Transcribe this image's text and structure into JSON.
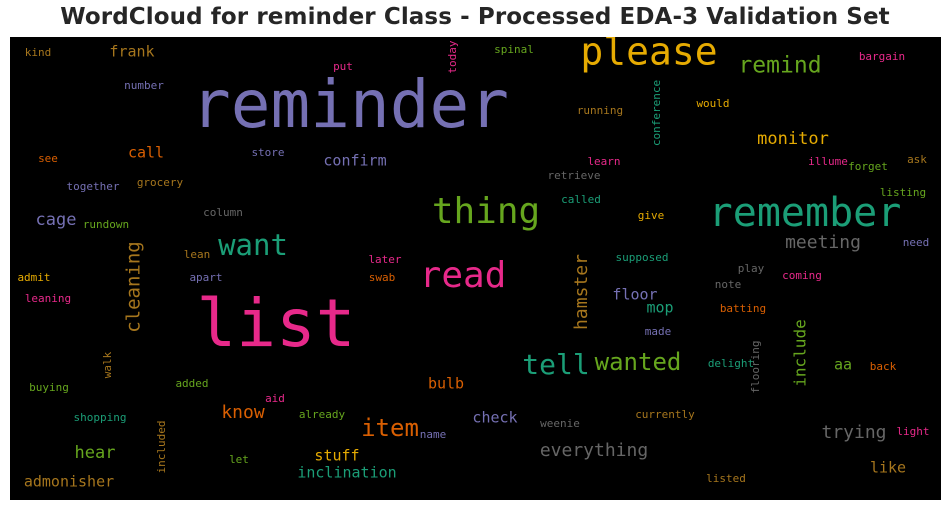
{
  "chart_data": {
    "type": "wordcloud",
    "title": "WordCloud for reminder Class - Processed EDA-3 Validation Set",
    "background": "#000000",
    "colors": [
      "#7570b3",
      "#e7298a",
      "#e6ab02",
      "#1b9e77",
      "#66a61e",
      "#d95f02",
      "#a6761d",
      "#666666"
    ],
    "words": [
      {
        "text": "reminder",
        "size": 66,
        "color": "#7570b3",
        "rotate": false
      },
      {
        "text": "list",
        "size": 66,
        "color": "#e7298a",
        "rotate": false
      },
      {
        "text": "please",
        "size": 38,
        "color": "#e6ab02",
        "rotate": false
      },
      {
        "text": "remember",
        "size": 40,
        "color": "#1b9e77",
        "rotate": false
      },
      {
        "text": "thing",
        "size": 36,
        "color": "#66a61e",
        "rotate": false
      },
      {
        "text": "read",
        "size": 36,
        "color": "#e7298a",
        "rotate": false
      },
      {
        "text": "want",
        "size": 29,
        "color": "#1b9e77",
        "rotate": false
      },
      {
        "text": "tell",
        "size": 28,
        "color": "#1b9e77",
        "rotate": false
      },
      {
        "text": "wanted",
        "size": 24,
        "color": "#66a61e",
        "rotate": false
      },
      {
        "text": "item",
        "size": 24,
        "color": "#d95f02",
        "rotate": false
      },
      {
        "text": "remind",
        "size": 23,
        "color": "#66a61e",
        "rotate": false
      },
      {
        "text": "cleaning",
        "size": 19,
        "color": "#a6761d",
        "rotate": true
      },
      {
        "text": "hamster",
        "size": 18,
        "color": "#a6761d",
        "rotate": true
      },
      {
        "text": "meeting",
        "size": 18,
        "color": "#666666",
        "rotate": false
      },
      {
        "text": "monitor",
        "size": 17,
        "color": "#e6ab02",
        "rotate": false
      },
      {
        "text": "know",
        "size": 18,
        "color": "#d95f02",
        "rotate": false
      },
      {
        "text": "everything",
        "size": 18,
        "color": "#666666",
        "rotate": false
      },
      {
        "text": "trying",
        "size": 18,
        "color": "#666666",
        "rotate": false
      },
      {
        "text": "hear",
        "size": 17,
        "color": "#66a61e",
        "rotate": false
      },
      {
        "text": "cage",
        "size": 17,
        "color": "#7570b3",
        "rotate": false
      },
      {
        "text": "include",
        "size": 16,
        "color": "#66a61e",
        "rotate": true
      },
      {
        "text": "confirm",
        "size": 15,
        "color": "#7570b3",
        "rotate": false
      },
      {
        "text": "call",
        "size": 15,
        "color": "#d95f02",
        "rotate": false
      },
      {
        "text": "frank",
        "size": 15,
        "color": "#a6761d",
        "rotate": false
      },
      {
        "text": "stuff",
        "size": 15,
        "color": "#e6ab02",
        "rotate": false
      },
      {
        "text": "inclination",
        "size": 15,
        "color": "#1b9e77",
        "rotate": false
      },
      {
        "text": "admonisher",
        "size": 15,
        "color": "#a6761d",
        "rotate": false
      },
      {
        "text": "bulb",
        "size": 15,
        "color": "#d95f02",
        "rotate": false
      },
      {
        "text": "check",
        "size": 15,
        "color": "#7570b3",
        "rotate": false
      },
      {
        "text": "floor",
        "size": 15,
        "color": "#7570b3",
        "rotate": false
      },
      {
        "text": "mop",
        "size": 15,
        "color": "#1b9e77",
        "rotate": false
      },
      {
        "text": "like",
        "size": 15,
        "color": "#a6761d",
        "rotate": false
      },
      {
        "text": "aa",
        "size": 15,
        "color": "#66a61e",
        "rotate": false
      },
      {
        "text": "kind",
        "size": 11,
        "color": "#a6761d",
        "rotate": false
      },
      {
        "text": "number",
        "size": 11,
        "color": "#7570b3",
        "rotate": false
      },
      {
        "text": "put",
        "size": 11,
        "color": "#e7298a",
        "rotate": false
      },
      {
        "text": "today",
        "size": 11,
        "color": "#e7298a",
        "rotate": true
      },
      {
        "text": "spinal",
        "size": 11,
        "color": "#66a61e",
        "rotate": false
      },
      {
        "text": "bargain",
        "size": 11,
        "color": "#e7298a",
        "rotate": false
      },
      {
        "text": "running",
        "size": 11,
        "color": "#a6761d",
        "rotate": false
      },
      {
        "text": "conference",
        "size": 11,
        "color": "#1b9e77",
        "rotate": true
      },
      {
        "text": "would",
        "size": 11,
        "color": "#e6ab02",
        "rotate": false
      },
      {
        "text": "see",
        "size": 11,
        "color": "#d95f02",
        "rotate": false
      },
      {
        "text": "store",
        "size": 11,
        "color": "#7570b3",
        "rotate": false
      },
      {
        "text": "learn",
        "size": 11,
        "color": "#e7298a",
        "rotate": false
      },
      {
        "text": "illume",
        "size": 11,
        "color": "#e7298a",
        "rotate": false
      },
      {
        "text": "ask",
        "size": 11,
        "color": "#a6761d",
        "rotate": false
      },
      {
        "text": "forget",
        "size": 11,
        "color": "#66a61e",
        "rotate": false
      },
      {
        "text": "together",
        "size": 11,
        "color": "#7570b3",
        "rotate": false
      },
      {
        "text": "grocery",
        "size": 11,
        "color": "#a6761d",
        "rotate": false
      },
      {
        "text": "retrieve",
        "size": 11,
        "color": "#666666",
        "rotate": false
      },
      {
        "text": "listing",
        "size": 11,
        "color": "#66a61e",
        "rotate": false
      },
      {
        "text": "called",
        "size": 11,
        "color": "#1b9e77",
        "rotate": false
      },
      {
        "text": "rundown",
        "size": 11,
        "color": "#66a61e",
        "rotate": false
      },
      {
        "text": "column",
        "size": 11,
        "color": "#666666",
        "rotate": false
      },
      {
        "text": "give",
        "size": 11,
        "color": "#e6ab02",
        "rotate": false
      },
      {
        "text": "need",
        "size": 11,
        "color": "#7570b3",
        "rotate": false
      },
      {
        "text": "lean",
        "size": 11,
        "color": "#a6761d",
        "rotate": false
      },
      {
        "text": "later",
        "size": 11,
        "color": "#e7298a",
        "rotate": false
      },
      {
        "text": "supposed",
        "size": 11,
        "color": "#1b9e77",
        "rotate": false
      },
      {
        "text": "play",
        "size": 11,
        "color": "#666666",
        "rotate": false
      },
      {
        "text": "admit",
        "size": 11,
        "color": "#e6ab02",
        "rotate": false
      },
      {
        "text": "apart",
        "size": 11,
        "color": "#7570b3",
        "rotate": false
      },
      {
        "text": "swab",
        "size": 11,
        "color": "#d95f02",
        "rotate": false
      },
      {
        "text": "coming",
        "size": 11,
        "color": "#e7298a",
        "rotate": false
      },
      {
        "text": "note",
        "size": 11,
        "color": "#666666",
        "rotate": false
      },
      {
        "text": "leaning",
        "size": 11,
        "color": "#e7298a",
        "rotate": false
      },
      {
        "text": "batting",
        "size": 11,
        "color": "#d95f02",
        "rotate": false
      },
      {
        "text": "made",
        "size": 11,
        "color": "#7570b3",
        "rotate": false
      },
      {
        "text": "walk",
        "size": 11,
        "color": "#a6761d",
        "rotate": true
      },
      {
        "text": "flooring",
        "size": 11,
        "color": "#666666",
        "rotate": true
      },
      {
        "text": "delight",
        "size": 11,
        "color": "#1b9e77",
        "rotate": false
      },
      {
        "text": "back",
        "size": 11,
        "color": "#d95f02",
        "rotate": false
      },
      {
        "text": "buying",
        "size": 11,
        "color": "#66a61e",
        "rotate": false
      },
      {
        "text": "added",
        "size": 11,
        "color": "#66a61e",
        "rotate": false
      },
      {
        "text": "aid",
        "size": 11,
        "color": "#e7298a",
        "rotate": false
      },
      {
        "text": "already",
        "size": 11,
        "color": "#66a61e",
        "rotate": false
      },
      {
        "text": "shopping",
        "size": 11,
        "color": "#1b9e77",
        "rotate": false
      },
      {
        "text": "included",
        "size": 11,
        "color": "#a6761d",
        "rotate": true
      },
      {
        "text": "name",
        "size": 11,
        "color": "#7570b3",
        "rotate": false
      },
      {
        "text": "weenie",
        "size": 11,
        "color": "#666666",
        "rotate": false
      },
      {
        "text": "currently",
        "size": 11,
        "color": "#a6761d",
        "rotate": false
      },
      {
        "text": "light",
        "size": 11,
        "color": "#e7298a",
        "rotate": false
      },
      {
        "text": "let",
        "size": 11,
        "color": "#66a61e",
        "rotate": false
      },
      {
        "text": "listed",
        "size": 11,
        "color": "#a6761d",
        "rotate": false
      }
    ]
  }
}
